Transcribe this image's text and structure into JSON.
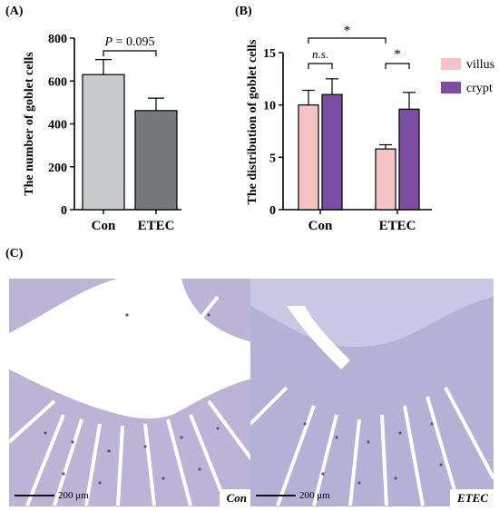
{
  "panel_a": {
    "label": "(A)"
  },
  "panel_b": {
    "label": "(B)"
  },
  "panel_c": {
    "label": "(C)"
  },
  "chart_data": [
    {
      "type": "bar",
      "categories": [
        "Con",
        "ETEC"
      ],
      "values": [
        630,
        462
      ],
      "errors": [
        70,
        58
      ],
      "colors": [
        "#c8c9cb",
        "#77787b"
      ],
      "ylabel": "The number of goblet cells",
      "xlabel": "",
      "ylim": [
        0,
        800
      ],
      "yticks": [
        0,
        200,
        400,
        600,
        800
      ],
      "annotation": "P = 0.095"
    },
    {
      "type": "bar",
      "categories": [
        "Con",
        "ETEC"
      ],
      "series": [
        {
          "name": "villus",
          "values": [
            10.0,
            5.8
          ],
          "errors": [
            1.4,
            0.4
          ],
          "color": "#f5c4c4"
        },
        {
          "name": "crypt",
          "values": [
            11.0,
            9.6
          ],
          "errors": [
            1.5,
            1.6
          ],
          "color": "#7b4ea3"
        }
      ],
      "ylabel": "The distribution of goblet cells",
      "xlabel": "",
      "ylim": [
        0,
        15
      ],
      "yticks": [
        0,
        5,
        10,
        15
      ],
      "legend": "right",
      "annotations": [
        "*",
        "n.s.",
        "*"
      ]
    }
  ],
  "micrographs": [
    {
      "tag": "Con",
      "scale_label": "200 μm"
    },
    {
      "tag": "ETEC",
      "scale_label": "200 μm"
    }
  ]
}
